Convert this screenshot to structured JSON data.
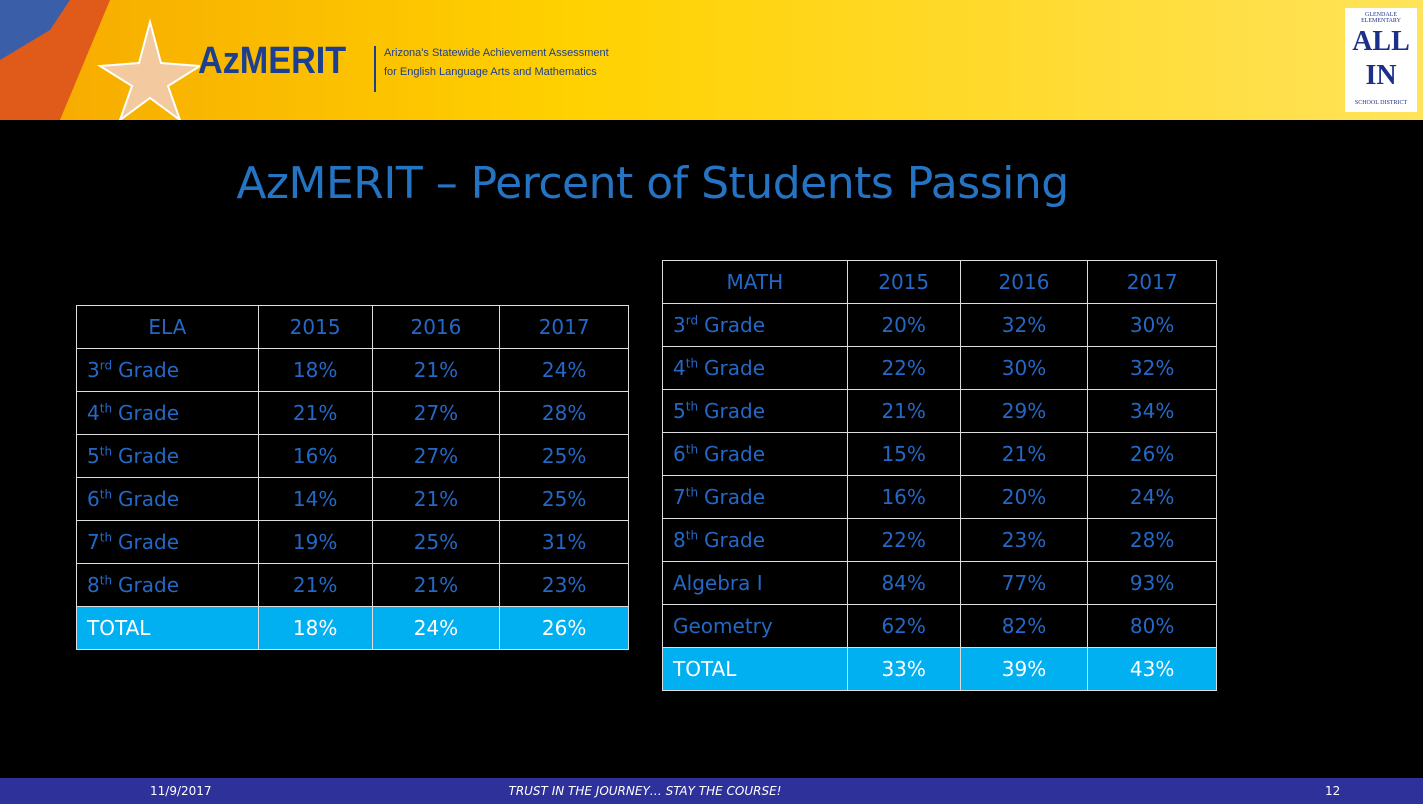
{
  "header": {
    "logo": "AzMERIT",
    "tagline_1": "Arizona's Statewide Achievement Assessment",
    "tagline_2": "for English Language Arts and Mathematics",
    "district_logo": {
      "top": "ALL",
      "bottom": "IN",
      "ring_1": "GLENDALE ELEMENTARY",
      "ring_2": "SCHOOL DISTRICT"
    }
  },
  "title": "AzMERIT – Percent of Students Passing",
  "tables": [
    {
      "header": [
        "ELA",
        "2015",
        "2016",
        "2017"
      ],
      "rows": [
        {
          "label": {
            "num": "3",
            "sup": "rd",
            "text": "Grade"
          },
          "cells": [
            "18%",
            "21%",
            "24%"
          ]
        },
        {
          "label": {
            "num": "4",
            "sup": "th",
            "text": "Grade"
          },
          "cells": [
            "21%",
            "27%",
            "28%"
          ]
        },
        {
          "label": {
            "num": "5",
            "sup": "th",
            "text": "Grade"
          },
          "cells": [
            "16%",
            "27%",
            "25%"
          ]
        },
        {
          "label": {
            "num": "6",
            "sup": "th",
            "text": "Grade"
          },
          "cells": [
            "14%",
            "21%",
            "25%"
          ]
        },
        {
          "label": {
            "num": "7",
            "sup": "th",
            "text": "Grade"
          },
          "cells": [
            "19%",
            "25%",
            "31%"
          ]
        },
        {
          "label": {
            "num": "8",
            "sup": "th",
            "text": "Grade"
          },
          "cells": [
            "21%",
            "21%",
            "23%"
          ]
        }
      ],
      "total": {
        "label": "TOTAL",
        "cells": [
          "18%",
          "24%",
          "26%"
        ]
      }
    },
    {
      "header": [
        "MATH",
        "2015",
        "2016",
        "2017"
      ],
      "rows": [
        {
          "label": {
            "num": "3",
            "sup": "rd",
            "text": "Grade"
          },
          "cells": [
            "20%",
            "32%",
            "30%"
          ]
        },
        {
          "label": {
            "num": "4",
            "sup": "th",
            "text": "Grade"
          },
          "cells": [
            "22%",
            "30%",
            "32%"
          ]
        },
        {
          "label": {
            "num": "5",
            "sup": "th",
            "text": "Grade"
          },
          "cells": [
            "21%",
            "29%",
            "34%"
          ]
        },
        {
          "label": {
            "num": "6",
            "sup": "th",
            "text": "Grade"
          },
          "cells": [
            "15%",
            "21%",
            "26%"
          ]
        },
        {
          "label": {
            "num": "7",
            "sup": "th",
            "text": "Grade"
          },
          "cells": [
            "16%",
            "20%",
            "24%"
          ]
        },
        {
          "label": {
            "num": "8",
            "sup": "th",
            "text": "Grade"
          },
          "cells": [
            "22%",
            "23%",
            "28%"
          ]
        },
        {
          "label": "Algebra I",
          "cells": [
            "84%",
            "77%",
            "93%"
          ]
        },
        {
          "label": "Geometry",
          "cells": [
            "62%",
            "82%",
            "80%"
          ]
        }
      ],
      "total": {
        "label": "TOTAL",
        "cells": [
          "33%",
          "39%",
          "43%"
        ]
      }
    }
  ],
  "footer": {
    "date": "11/9/2017",
    "motto": "TRUST IN THE JOURNEY… STAY THE COURSE!",
    "page": "12"
  }
}
